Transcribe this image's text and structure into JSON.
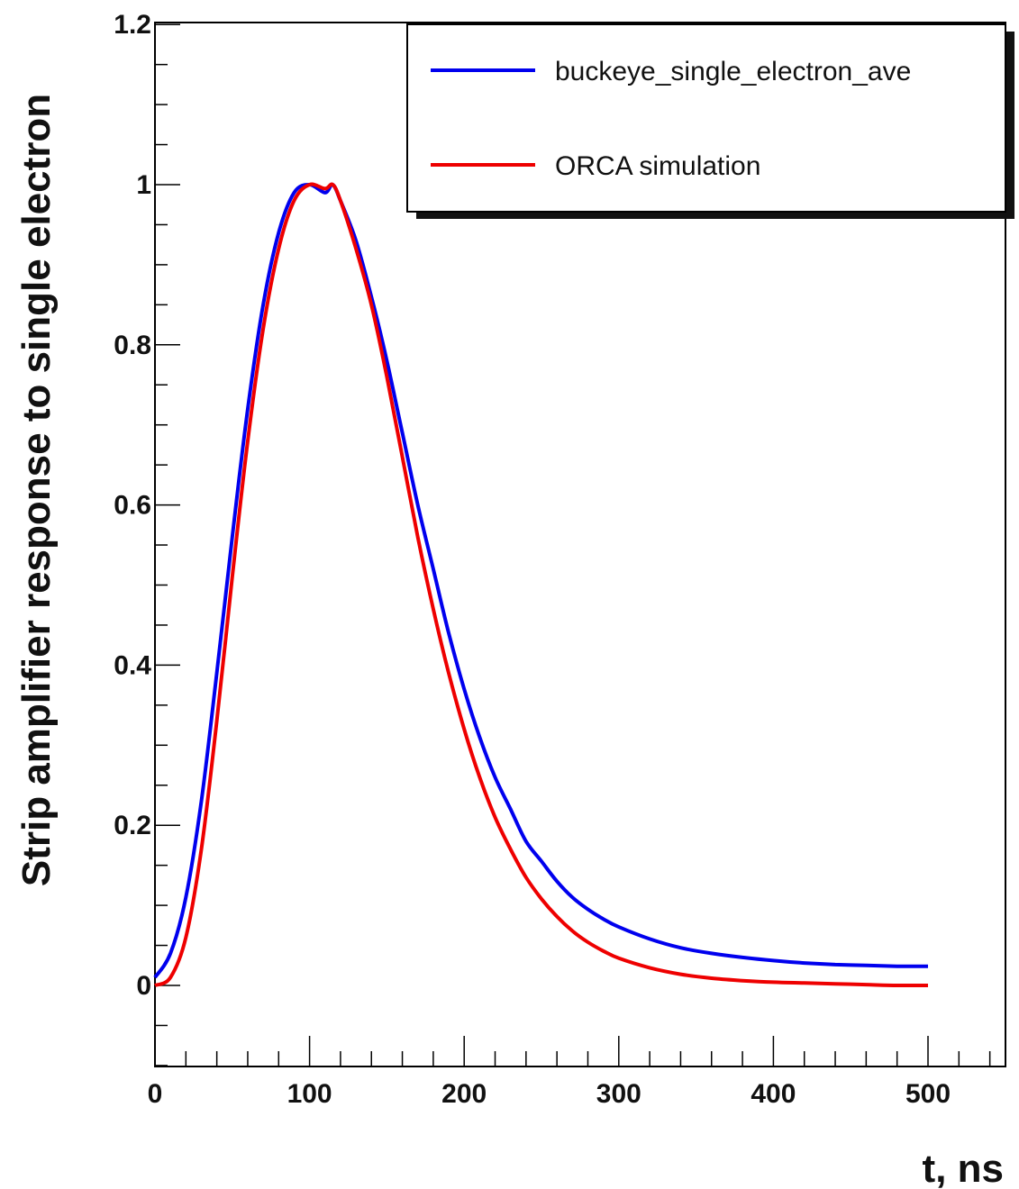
{
  "chart_data": {
    "type": "line",
    "title": "",
    "xlabel": "t, ns",
    "ylabel": "Strip amplifier response to single electron",
    "xlim": [
      0,
      550
    ],
    "ylim": [
      -0.1,
      1.2
    ],
    "x_ticks": [
      0,
      100,
      200,
      300,
      400,
      500
    ],
    "x_tick_labels": [
      "0",
      "100",
      "200",
      "300",
      "400",
      "500"
    ],
    "y_ticks": [
      0,
      0.2,
      0.4,
      0.6,
      0.8,
      1,
      1.2
    ],
    "y_tick_labels": [
      "0",
      "0.2",
      "0.4",
      "0.6",
      "0.8",
      "1",
      "1.2"
    ],
    "grid": false,
    "legend_position": "top-right",
    "series": [
      {
        "name": "buckeye_single_electron_ave",
        "color": "#0000ee",
        "x": [
          0,
          10,
          20,
          30,
          40,
          50,
          60,
          70,
          80,
          90,
          100,
          110,
          115,
          120,
          130,
          140,
          150,
          160,
          170,
          180,
          190,
          200,
          210,
          220,
          230,
          240,
          250,
          260,
          270,
          280,
          290,
          300,
          320,
          340,
          360,
          380,
          400,
          420,
          440,
          460,
          480,
          500
        ],
        "values": [
          0.01,
          0.04,
          0.11,
          0.23,
          0.39,
          0.56,
          0.72,
          0.85,
          0.94,
          0.99,
          1.0,
          0.99,
          1.0,
          0.98,
          0.93,
          0.86,
          0.78,
          0.69,
          0.6,
          0.52,
          0.44,
          0.37,
          0.31,
          0.26,
          0.22,
          0.18,
          0.155,
          0.13,
          0.11,
          0.095,
          0.083,
          0.073,
          0.058,
          0.047,
          0.04,
          0.035,
          0.031,
          0.028,
          0.026,
          0.025,
          0.024,
          0.024
        ]
      },
      {
        "name": "ORCA simulation",
        "color": "#ee0000",
        "x": [
          0,
          10,
          20,
          30,
          40,
          50,
          60,
          70,
          80,
          90,
          100,
          110,
          115,
          120,
          130,
          140,
          150,
          160,
          170,
          180,
          190,
          200,
          210,
          220,
          230,
          240,
          250,
          260,
          270,
          280,
          290,
          300,
          320,
          340,
          360,
          380,
          400,
          420,
          440,
          460,
          480,
          500
        ],
        "values": [
          0.0,
          0.01,
          0.06,
          0.17,
          0.33,
          0.51,
          0.68,
          0.82,
          0.92,
          0.98,
          1.0,
          0.995,
          1.0,
          0.98,
          0.92,
          0.85,
          0.76,
          0.66,
          0.56,
          0.47,
          0.39,
          0.32,
          0.26,
          0.21,
          0.17,
          0.135,
          0.108,
          0.086,
          0.068,
          0.054,
          0.043,
          0.034,
          0.022,
          0.014,
          0.009,
          0.006,
          0.004,
          0.003,
          0.002,
          0.001,
          0.0,
          0.0
        ]
      }
    ]
  }
}
